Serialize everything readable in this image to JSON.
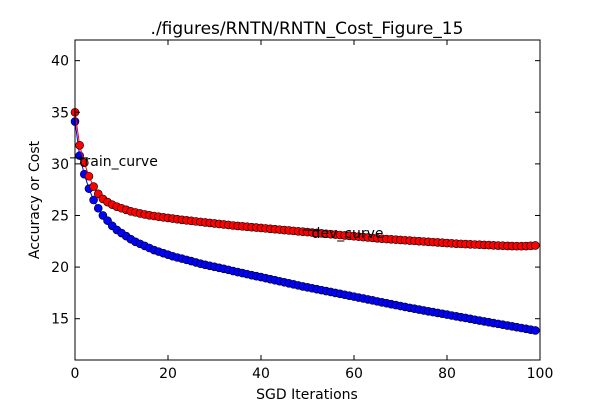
{
  "chart_data": {
    "type": "line",
    "title": "./figures/RNTN/RNTN_Cost_Figure_15",
    "xlabel": "SGD Iterations",
    "ylabel": "Accuracy or Cost",
    "xlim": [
      0,
      100
    ],
    "ylim": [
      11,
      42
    ],
    "xticks": [
      0,
      20,
      40,
      60,
      80,
      100
    ],
    "yticks": [
      15,
      20,
      25,
      30,
      35,
      40
    ],
    "grid": false,
    "series": [
      {
        "name": "train_curve",
        "color": "#0000ff",
        "marker": "circle",
        "x": [
          0,
          1,
          2,
          3,
          4,
          5,
          6,
          7,
          8,
          9,
          10,
          11,
          12,
          13,
          14,
          15,
          16,
          17,
          18,
          19,
          20,
          21,
          22,
          23,
          24,
          25,
          26,
          27,
          28,
          29,
          30,
          31,
          32,
          33,
          34,
          35,
          36,
          37,
          38,
          39,
          40,
          41,
          42,
          43,
          44,
          45,
          46,
          47,
          48,
          49,
          50,
          51,
          52,
          53,
          54,
          55,
          56,
          57,
          58,
          59,
          60,
          61,
          62,
          63,
          64,
          65,
          66,
          67,
          68,
          69,
          70,
          71,
          72,
          73,
          74,
          75,
          76,
          77,
          78,
          79,
          80,
          81,
          82,
          83,
          84,
          85,
          86,
          87,
          88,
          89,
          90,
          91,
          92,
          93,
          94,
          95,
          96,
          97,
          98,
          99
        ],
        "y": [
          34.1,
          30.8,
          29.0,
          27.6,
          26.5,
          25.7,
          25.0,
          24.5,
          24.0,
          23.6,
          23.3,
          23.0,
          22.7,
          22.45,
          22.25,
          22.05,
          21.85,
          21.65,
          21.5,
          21.35,
          21.2,
          21.05,
          20.93,
          20.82,
          20.7,
          20.58,
          20.45,
          20.33,
          20.22,
          20.12,
          20.03,
          19.93,
          19.83,
          19.73,
          19.62,
          19.52,
          19.42,
          19.32,
          19.22,
          19.12,
          19.03,
          18.93,
          18.83,
          18.73,
          18.63,
          18.53,
          18.43,
          18.33,
          18.23,
          18.13,
          18.04,
          17.95,
          17.86,
          17.77,
          17.68,
          17.59,
          17.5,
          17.41,
          17.32,
          17.23,
          17.14,
          17.05,
          16.96,
          16.87,
          16.78,
          16.68,
          16.59,
          16.5,
          16.41,
          16.32,
          16.23,
          16.14,
          16.05,
          15.97,
          15.89,
          15.8,
          15.72,
          15.64,
          15.56,
          15.48,
          15.4,
          15.31,
          15.23,
          15.15,
          15.07,
          14.99,
          14.9,
          14.82,
          14.74,
          14.66,
          14.58,
          14.5,
          14.42,
          14.34,
          14.26,
          14.18,
          14.1,
          14.02,
          13.94,
          13.86
        ]
      },
      {
        "name": "dev_curve",
        "color": "#ff0000",
        "marker": "circle",
        "x": [
          0,
          1,
          2,
          3,
          4,
          5,
          6,
          7,
          8,
          9,
          10,
          11,
          12,
          13,
          14,
          15,
          16,
          17,
          18,
          19,
          20,
          21,
          22,
          23,
          24,
          25,
          26,
          27,
          28,
          29,
          30,
          31,
          32,
          33,
          34,
          35,
          36,
          37,
          38,
          39,
          40,
          41,
          42,
          43,
          44,
          45,
          46,
          47,
          48,
          49,
          50,
          51,
          52,
          53,
          54,
          55,
          56,
          57,
          58,
          59,
          60,
          61,
          62,
          63,
          64,
          65,
          66,
          67,
          68,
          69,
          70,
          71,
          72,
          73,
          74,
          75,
          76,
          77,
          78,
          79,
          80,
          81,
          82,
          83,
          84,
          85,
          86,
          87,
          88,
          89,
          90,
          91,
          92,
          93,
          94,
          95,
          96,
          97,
          98,
          99
        ],
        "y": [
          35.0,
          31.8,
          30.1,
          28.8,
          27.8,
          27.1,
          26.6,
          26.3,
          26.05,
          25.85,
          25.7,
          25.55,
          25.4,
          25.3,
          25.2,
          25.1,
          25.02,
          24.95,
          24.88,
          24.82,
          24.76,
          24.7,
          24.64,
          24.58,
          24.53,
          24.48,
          24.43,
          24.38,
          24.33,
          24.28,
          24.23,
          24.18,
          24.13,
          24.08,
          24.03,
          23.99,
          23.95,
          23.91,
          23.87,
          23.83,
          23.79,
          23.75,
          23.71,
          23.67,
          23.63,
          23.59,
          23.55,
          23.51,
          23.47,
          23.43,
          23.39,
          23.35,
          23.31,
          23.27,
          23.23,
          23.19,
          23.15,
          23.11,
          23.07,
          23.03,
          22.99,
          22.95,
          22.91,
          22.87,
          22.83,
          22.79,
          22.75,
          22.72,
          22.69,
          22.66,
          22.63,
          22.6,
          22.57,
          22.54,
          22.51,
          22.48,
          22.45,
          22.42,
          22.39,
          22.36,
          22.33,
          22.3,
          22.27,
          22.25,
          22.23,
          22.21,
          22.19,
          22.17,
          22.15,
          22.13,
          22.11,
          22.09,
          22.07,
          22.05,
          22.04,
          22.03,
          22.03,
          22.04,
          22.06,
          22.1
        ]
      }
    ],
    "annotations": [
      {
        "text": "train_curve",
        "x": 0,
        "y": 30
      },
      {
        "text": "dev_curve",
        "x": 50,
        "y": 23
      }
    ]
  }
}
